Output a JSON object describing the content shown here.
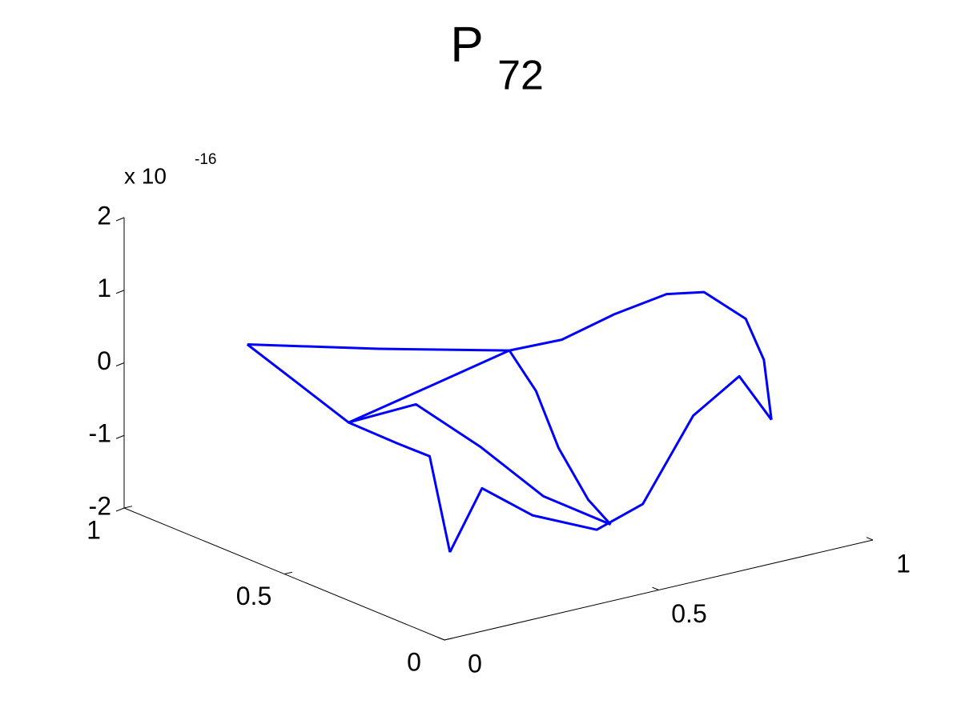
{
  "chart_data": {
    "type": "surface3d",
    "title": "P",
    "title_subscript": "72",
    "z_multiplier": "x 10",
    "z_exponent": "-16",
    "color": "#0000ff",
    "xlim": [
      0,
      1
    ],
    "xticks": [
      0,
      0.5,
      1
    ],
    "ylim": [
      0,
      1
    ],
    "yticks": [
      0,
      0.5,
      1
    ],
    "zlim": [
      -2,
      2
    ],
    "zticks": [
      -2,
      -1,
      0,
      1,
      2
    ],
    "grid": false,
    "series": [
      {
        "x": [
          0.25,
          0.43,
          0.6,
          0.67,
          0.74,
          0.81,
          0.86,
          0.92,
          0.94,
          0.95
        ],
        "y": [
          0.95,
          0.78,
          0.6,
          0.53,
          0.46,
          0.39,
          0.34,
          0.29,
          0.26,
          0.25
        ],
        "z": [
          0,
          0,
          0.07,
          0.25,
          0.63,
          0.94,
          0.99,
          0.63,
          0.09,
          -0.73
        ]
      },
      {
        "x": [
          0.25,
          0.2,
          0.15,
          0.1,
          0.07,
          0.05
        ],
        "y": [
          0.95,
          0.73,
          0.5,
          0.28,
          0.14,
          0.05
        ],
        "z": [
          0,
          -0.05,
          -0.12,
          0.06,
          0.18,
          -0.95
        ]
      },
      {
        "x": [
          0.05,
          0.14,
          0.28,
          0.46,
          0.59,
          0.73,
          0.86,
          0.95
        ],
        "y": [
          0.05,
          0.07,
          0.1,
          0.14,
          0.17,
          0.2,
          0.23,
          0.25
        ],
        "z": [
          -0.95,
          -0.23,
          -0.85,
          -1.37,
          -1.25,
          -0.28,
          0.03,
          -0.73
        ]
      },
      {
        "x": [
          0.15,
          0.38,
          0.6
        ],
        "y": [
          0.5,
          0.55,
          0.6
        ],
        "z": [
          -0.12,
          -0.02,
          0.07
        ]
      },
      {
        "x": [
          0.15,
          0.24,
          0.33,
          0.41,
          0.5
        ],
        "y": [
          0.5,
          0.41,
          0.33,
          0.24,
          0.15
        ],
        "z": [
          -0.12,
          0.17,
          -0.39,
          -1.02,
          -1.37
        ]
      },
      {
        "x": [
          0.6,
          0.58,
          0.55,
          0.53,
          0.5
        ],
        "y": [
          0.6,
          0.49,
          0.38,
          0.26,
          0.15
        ],
        "z": [
          0.07,
          -0.26,
          -0.8,
          -1.27,
          -1.37
        ]
      }
    ]
  }
}
